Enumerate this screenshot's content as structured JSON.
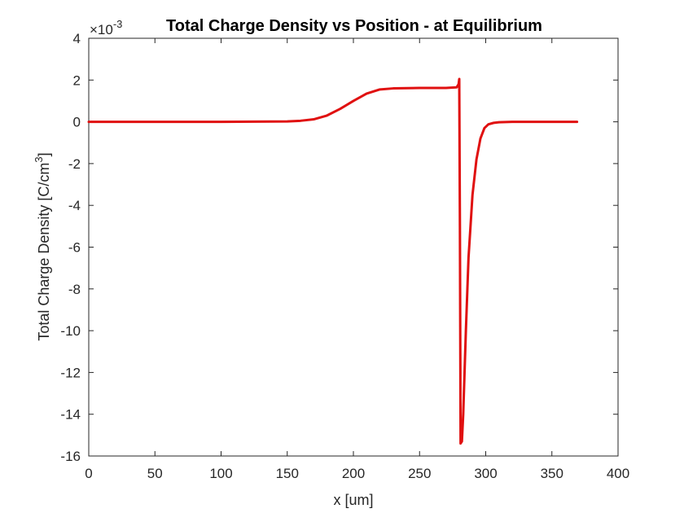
{
  "chart_data": {
    "type": "line",
    "title": "Total Charge Density vs Position - at Equilibrium",
    "xlabel": "x [um]",
    "ylabel": {
      "main": "Total Charge Density [C/cm",
      "sup": "3",
      "end": "]"
    },
    "exponent": {
      "prefix": "×10",
      "power": "-3"
    },
    "xlim": [
      0,
      400
    ],
    "ylim": [
      -16,
      4
    ],
    "xticks": [
      0,
      50,
      100,
      150,
      200,
      250,
      300,
      350,
      400
    ],
    "yticks": [
      4,
      2,
      0,
      -2,
      -4,
      -6,
      -8,
      -10,
      -12,
      -14,
      -16
    ],
    "grid": false,
    "legend": "none",
    "series": [
      {
        "color": "#e01010",
        "x": [
          0,
          100,
          150,
          160,
          170,
          180,
          190,
          200,
          210,
          220,
          230,
          250,
          270,
          278,
          279.5,
          280,
          280.5,
          281,
          282,
          283,
          285,
          287,
          290,
          293,
          296,
          299,
          302,
          306,
          310,
          315,
          320,
          340,
          369
        ],
        "y": [
          0,
          0,
          0.02,
          0.05,
          0.12,
          0.3,
          0.62,
          1.0,
          1.35,
          1.55,
          1.6,
          1.62,
          1.62,
          1.65,
          1.8,
          2.05,
          -5.0,
          -15.4,
          -15.3,
          -14.0,
          -10.0,
          -6.5,
          -3.5,
          -1.8,
          -0.8,
          -0.3,
          -0.12,
          -0.05,
          -0.02,
          -0.01,
          0,
          0,
          0
        ]
      }
    ]
  }
}
